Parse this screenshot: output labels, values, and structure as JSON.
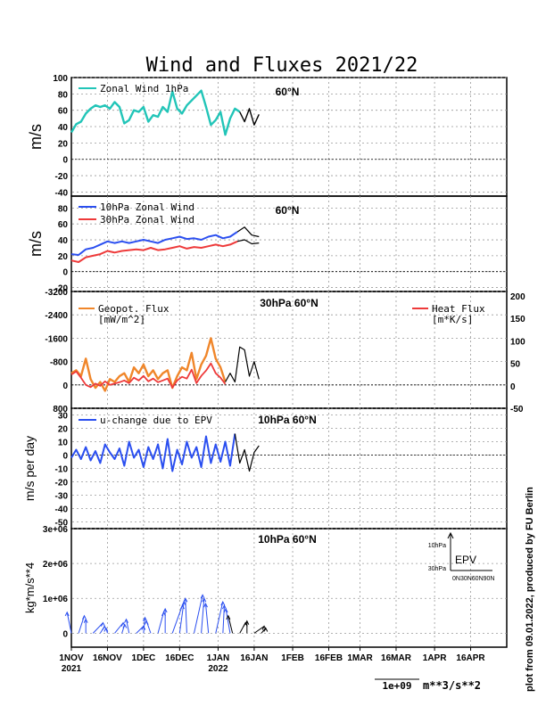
{
  "title": "Wind and Fluxes 2021/22",
  "footer": {
    "credit": "plot from 09.01.2022, produced by FU Berlin",
    "vector_scale": "1e+09",
    "vector_units": "m**3/s**2"
  },
  "x_axis": {
    "tick_labels": [
      "1NOV",
      "16NOV",
      "1DEC",
      "16DEC",
      "1JAN",
      "16JAN",
      "1FEB",
      "16FEB",
      "1MAR",
      "16MAR",
      "1APR",
      "16APR"
    ],
    "year_labels": [
      "2021",
      "2022"
    ]
  },
  "colors": {
    "zonal_1hpa": "#22c5b8",
    "wind_10hpa": "#2b4ff0",
    "wind_30hpa": "#ee3a3a",
    "geopot_flux": "#f0862a",
    "heat_flux": "#ee3a3a",
    "epv": "#2b4ff0",
    "forecast": "#000000"
  },
  "chart_data": [
    {
      "type": "line",
      "panel_label": "60°N",
      "ylabel": "m/s",
      "ylim": [
        -45,
        100
      ],
      "yticks": [
        "100",
        "80",
        "60",
        "40",
        "20",
        "0",
        "-20",
        "-40"
      ],
      "series": [
        {
          "name": "Zonal Wind 1hPa",
          "x": [
            0,
            2,
            4,
            6,
            8,
            10,
            12,
            14,
            16,
            18,
            20,
            22,
            24,
            26,
            28,
            30,
            32,
            34,
            36,
            38,
            40,
            42,
            44,
            46,
            48,
            50,
            52,
            54,
            56,
            58,
            60,
            62,
            64,
            66,
            68,
            70
          ],
          "values": [
            33,
            43,
            46,
            56,
            62,
            66,
            64,
            66,
            62,
            70,
            64,
            44,
            48,
            60,
            58,
            64,
            46,
            54,
            52,
            64,
            58,
            83,
            62,
            56,
            66,
            72,
            78,
            84,
            64,
            42,
            48,
            58,
            30,
            50,
            62,
            58
          ]
        },
        {
          "name": "",
          "x": [
            70,
            72,
            74,
            76,
            78
          ],
          "values": [
            58,
            46,
            62,
            42,
            55
          ]
        }
      ]
    },
    {
      "type": "line",
      "panel_label": "60°N",
      "ylabel": "m/s",
      "ylim": [
        -25,
        95
      ],
      "yticks": [
        "80",
        "60",
        "40",
        "20",
        "0",
        "-20"
      ],
      "series": [
        {
          "name": "10hPa Zonal Wind",
          "x": [
            0,
            3,
            6,
            9,
            12,
            15,
            18,
            21,
            24,
            27,
            30,
            33,
            36,
            39,
            42,
            45,
            48,
            51,
            54,
            57,
            60,
            63,
            66,
            69
          ],
          "values": [
            22,
            21,
            28,
            30,
            34,
            38,
            36,
            38,
            36,
            38,
            40,
            38,
            36,
            40,
            42,
            44,
            41,
            42,
            40,
            44,
            46,
            42,
            44,
            50
          ]
        },
        {
          "name": "",
          "x": [
            69,
            72,
            75,
            78
          ],
          "values": [
            50,
            56,
            46,
            44
          ]
        },
        {
          "name": "30hPa Zonal Wind",
          "x": [
            0,
            3,
            6,
            9,
            12,
            15,
            18,
            21,
            24,
            27,
            30,
            33,
            36,
            39,
            42,
            45,
            48,
            51,
            54,
            57,
            60,
            63,
            66,
            69
          ],
          "values": [
            14,
            12,
            18,
            20,
            22,
            26,
            24,
            26,
            27,
            28,
            27,
            30,
            27,
            28,
            30,
            32,
            29,
            31,
            30,
            32,
            34,
            32,
            34,
            38
          ]
        },
        {
          "name": "",
          "x": [
            69,
            72,
            75,
            78
          ],
          "values": [
            38,
            40,
            35,
            36
          ]
        }
      ]
    },
    {
      "type": "line",
      "panel_label": "30hPa 60°N",
      "ylim_left": [
        0,
        -3200
      ],
      "ylim_right": [
        -50,
        200
      ],
      "yticks_left": [
        "-3200",
        "-2400",
        "-1600",
        "-800",
        "0",
        "800"
      ],
      "yticks_right": [
        "200",
        "150",
        "100",
        "50",
        "0",
        "-50"
      ],
      "series": [
        {
          "name": "Geopot. Flux",
          "units": "[mW/m^2]",
          "axis": "left",
          "x": [
            0,
            2,
            4,
            6,
            8,
            10,
            12,
            14,
            16,
            18,
            20,
            22,
            24,
            26,
            28,
            30,
            32,
            34,
            36,
            38,
            40,
            42,
            44,
            46,
            48,
            50,
            52,
            54,
            56,
            58,
            60,
            62,
            64
          ],
          "values": [
            -400,
            -500,
            -300,
            -900,
            -200,
            100,
            -100,
            200,
            -200,
            -100,
            -300,
            -400,
            -100,
            -600,
            -400,
            -700,
            -300,
            -500,
            -200,
            -400,
            -500,
            100,
            -300,
            -600,
            -500,
            -1100,
            -200,
            -700,
            -1000,
            -1600,
            -900,
            -600,
            -100
          ]
        },
        {
          "name": "Heat Flux",
          "units": "[m*K/s]",
          "axis": "right",
          "x": [
            0,
            2,
            4,
            6,
            8,
            10,
            12,
            14,
            16,
            18,
            20,
            22,
            24,
            26,
            28,
            30,
            32,
            34,
            36,
            38,
            40,
            42,
            44,
            46,
            48,
            50,
            52,
            54,
            56,
            58,
            60,
            62,
            64
          ],
          "values": [
            25,
            32,
            18,
            2,
            -3,
            5,
            0,
            10,
            2,
            5,
            8,
            12,
            6,
            18,
            12,
            22,
            10,
            16,
            8,
            12,
            16,
            -4,
            12,
            20,
            16,
            36,
            6,
            22,
            34,
            50,
            28,
            18,
            4
          ]
        },
        {
          "name": "",
          "x": [
            64,
            66,
            68,
            70,
            72,
            74,
            76,
            78
          ],
          "values": [
            -100,
            -400,
            -100,
            -1300,
            -1200,
            -300,
            -800,
            -200
          ]
        }
      ]
    },
    {
      "type": "line",
      "panel_label": "10hPa 60°N",
      "ylabel": "m/s per day",
      "ylim": [
        -55,
        35
      ],
      "yticks": [
        "30",
        "20",
        "10",
        "0",
        "-10",
        "-20",
        "-30",
        "-40",
        "-50"
      ],
      "series": [
        {
          "name": "u-change due to EPV",
          "x": [
            0,
            2,
            4,
            6,
            8,
            10,
            12,
            14,
            16,
            18,
            20,
            22,
            24,
            26,
            28,
            30,
            32,
            34,
            36,
            38,
            40,
            42,
            44,
            46,
            48,
            50,
            52,
            54,
            56,
            58,
            60,
            62,
            64,
            66,
            68
          ],
          "values": [
            -2,
            4,
            -3,
            6,
            -4,
            3,
            -6,
            8,
            2,
            -3,
            5,
            -8,
            10,
            -2,
            4,
            -9,
            6,
            -3,
            8,
            -10,
            12,
            -12,
            4,
            -7,
            10,
            -2,
            6,
            -9,
            14,
            -6,
            8,
            -5,
            10,
            -8,
            16
          ]
        },
        {
          "name": "",
          "x": [
            68,
            70,
            72,
            74,
            76,
            78
          ],
          "values": [
            16,
            -6,
            4,
            -12,
            2,
            7
          ]
        }
      ]
    },
    {
      "type": "scatter",
      "panel_label": "10hPa 60°N",
      "ylabel": "kg*m/s**4",
      "ylim": [
        -400000,
        3000000
      ],
      "yticks": [
        "3e+06",
        "2e+06",
        "1e+06",
        "0"
      ],
      "inset": {
        "label": "EPV",
        "y_ticks": [
          "10hPa",
          "30hPa"
        ],
        "x_ticks": "0N30N60N90N"
      },
      "series": [
        {
          "name": "EPV",
          "x": [
            0,
            3,
            6,
            9,
            12,
            15,
            18,
            21,
            24,
            27,
            30,
            33,
            36,
            39,
            42,
            45,
            48,
            51,
            54,
            57,
            60,
            63,
            66
          ],
          "values": [
            600000,
            500000,
            400000,
            300000,
            200000,
            150000,
            300000,
            250000,
            400000,
            200000,
            450000,
            350000,
            600000,
            700000,
            800000,
            900000,
            1000000,
            1100000,
            1000000,
            850000,
            900000,
            800000,
            700000
          ]
        },
        {
          "name": "",
          "x": [
            67,
            70,
            73,
            76,
            79
          ],
          "values": [
            500000,
            300000,
            350000,
            200000,
            150000
          ]
        }
      ]
    }
  ]
}
